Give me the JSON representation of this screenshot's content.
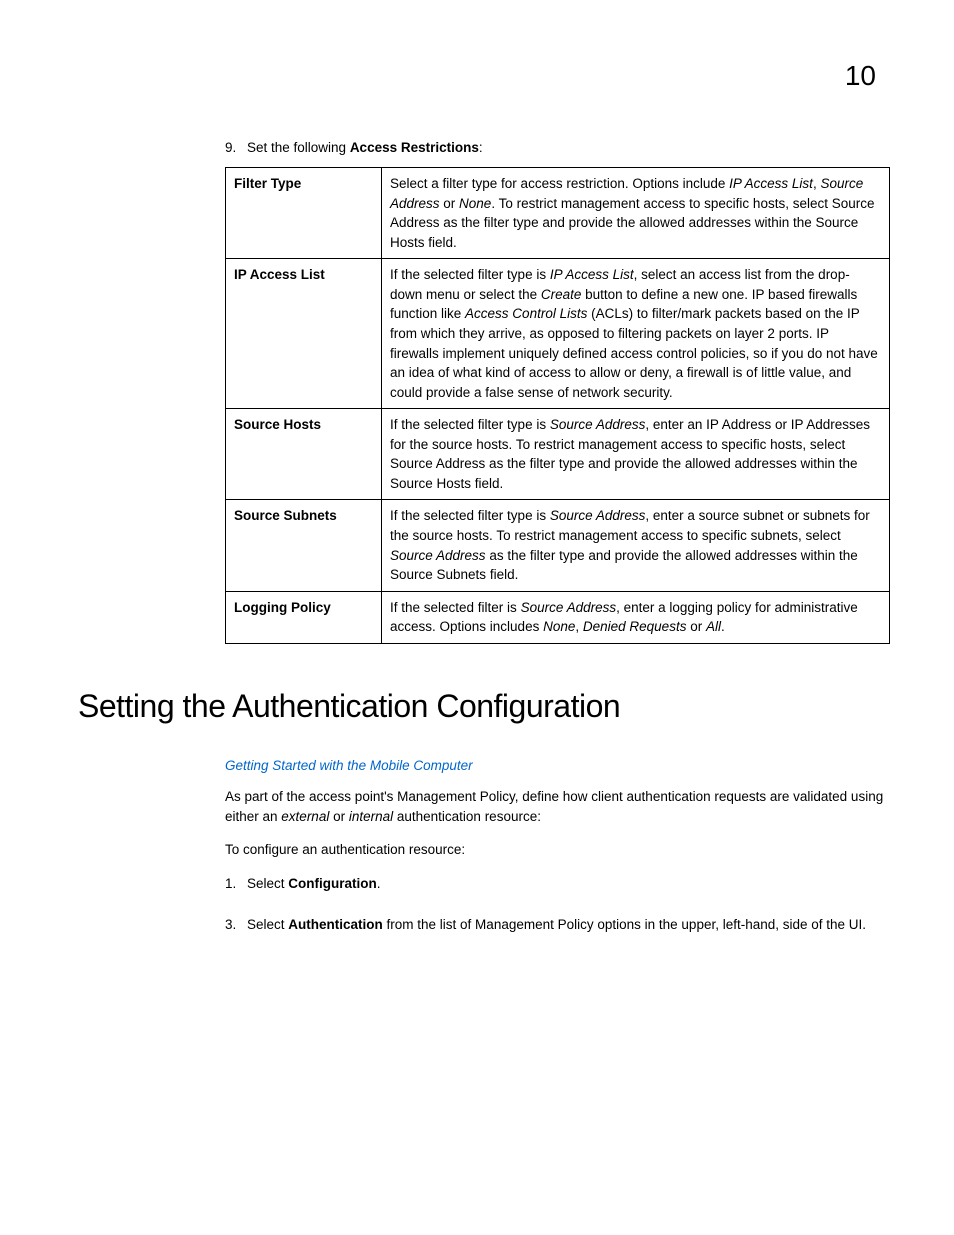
{
  "page_number": "10",
  "step9": {
    "num": "9.",
    "pre": "Set the following ",
    "bold": "Access Restrictions",
    "post": ":"
  },
  "table": {
    "rows": [
      {
        "label": "Filter Type",
        "parts": [
          {
            "t": "Select a filter type for access restriction. Options include "
          },
          {
            "t": "IP Access List",
            "i": true
          },
          {
            "t": ", "
          },
          {
            "t": "Source Address",
            "i": true
          },
          {
            "t": " or "
          },
          {
            "t": "None",
            "i": true
          },
          {
            "t": ". To restrict management access to specific hosts, select Source Address as the filter type and provide the allowed addresses within the Source Hosts field."
          }
        ]
      },
      {
        "label": "IP Access List",
        "parts": [
          {
            "t": "If the selected filter type is "
          },
          {
            "t": "IP Access List",
            "i": true
          },
          {
            "t": ", select an access list from the drop-down menu or select the "
          },
          {
            "t": "Create",
            "i": true
          },
          {
            "t": " button to define a new one. IP based firewalls function like "
          },
          {
            "t": "Access Control Lists",
            "i": true
          },
          {
            "t": " (ACLs) to filter/mark packets based on the IP from which they arrive, as opposed to filtering packets on layer 2 ports. IP firewalls implement uniquely defined access control policies, so if you do not have an idea of what kind of access to allow or deny, a firewall is of little value, and could provide a false sense of network security."
          }
        ]
      },
      {
        "label": "Source Hosts",
        "parts": [
          {
            "t": "If the selected filter type is "
          },
          {
            "t": "Source Address",
            "i": true
          },
          {
            "t": ", enter an IP Address or IP Addresses for the source hosts. To restrict management access to specific hosts, select Source Address as the filter type and provide the allowed addresses within the Source Hosts field."
          }
        ]
      },
      {
        "label": "Source Subnets",
        "parts": [
          {
            "t": "If the selected filter type is "
          },
          {
            "t": "Source Address",
            "i": true
          },
          {
            "t": ", enter a source subnet or subnets for the source hosts. To restrict management access to specific subnets, select "
          },
          {
            "t": "Source Address",
            "i": true
          },
          {
            "t": " as the filter type and provide the allowed addresses within the Source Subnets field."
          }
        ]
      },
      {
        "label": "Logging Policy",
        "parts": [
          {
            "t": "If the selected filter is "
          },
          {
            "t": "Source Address",
            "i": true
          },
          {
            "t": ", enter a logging policy for administrative access. Options includes "
          },
          {
            "t": "None",
            "i": true
          },
          {
            "t": ", "
          },
          {
            "t": "Denied Requests",
            "i": true
          },
          {
            "t": " or "
          },
          {
            "t": "All",
            "i": true
          },
          {
            "t": "."
          }
        ]
      }
    ]
  },
  "section_heading": "Setting the Authentication Configuration",
  "link_text": "Getting Started with the Mobile Computer",
  "intro": {
    "pre": "As part of the access point's Management Policy, define how client authentication requests are validated using either an ",
    "i1": "external",
    "mid": " or ",
    "i2": "internal",
    "post": " authentication resource:"
  },
  "lead": "To configure an authentication resource:",
  "steps": [
    {
      "num": "1.",
      "pre": "Select ",
      "bold": "Configuration",
      "post": "."
    },
    {
      "num": "3.",
      "pre": "Select ",
      "bold": "Authentication",
      "post": " from the list of Management Policy options in the upper, left-hand, side of the UI."
    }
  ]
}
